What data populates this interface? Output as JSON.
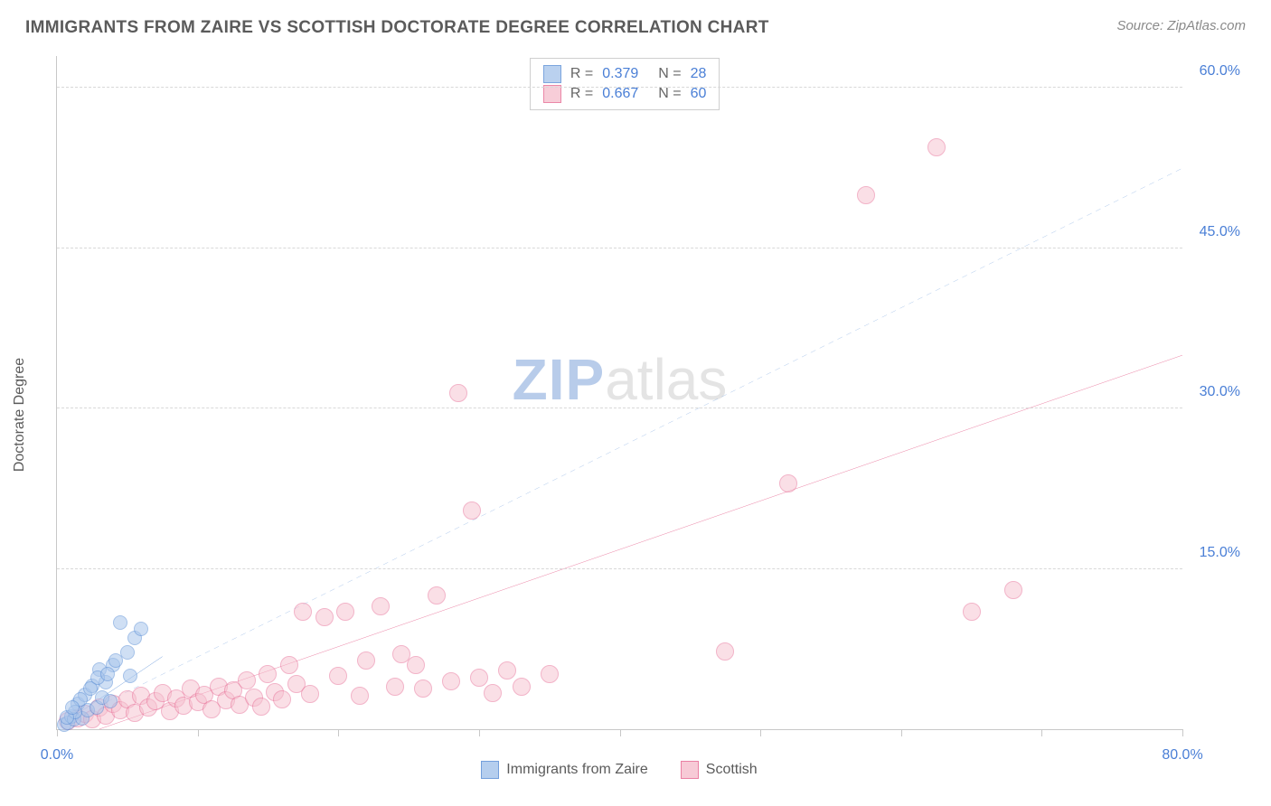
{
  "header": {
    "title": "IMMIGRANTS FROM ZAIRE VS SCOTTISH DOCTORATE DEGREE CORRELATION CHART",
    "source": "Source: ZipAtlas.com"
  },
  "ylabel": "Doctorate Degree",
  "watermark": {
    "a": "ZIP",
    "b": "atlas"
  },
  "xlim": [
    0,
    80
  ],
  "ylim": [
    0,
    63
  ],
  "grid_y": [
    15,
    30,
    45,
    60
  ],
  "ytick_labels": {
    "15": "15.0%",
    "30": "30.0%",
    "45": "45.0%",
    "60": "60.0%"
  },
  "xticks": [
    0,
    10,
    20,
    30,
    40,
    50,
    60,
    70,
    80
  ],
  "xtick_labels": {
    "0": "0.0%",
    "80": "80.0%"
  },
  "series": {
    "zaire": {
      "label": "Immigrants from Zaire",
      "color_fill": "#a9c6ec",
      "color_stroke": "#5b8fd6",
      "marker_r": 8,
      "fill_opacity": 0.55,
      "R": "0.379",
      "N": "28",
      "trend": {
        "x1": 0.4,
        "y1": 0.5,
        "x2": 7.5,
        "y2": 6.8,
        "dashed": true,
        "width": 1.5,
        "extend_to_x": 80,
        "extend_to_y": 52.5
      },
      "points": [
        [
          0.5,
          0.4
        ],
        [
          0.8,
          0.6
        ],
        [
          1.0,
          1.2
        ],
        [
          1.2,
          0.9
        ],
        [
          1.5,
          2.4
        ],
        [
          1.8,
          1.0
        ],
        [
          2.0,
          3.2
        ],
        [
          2.2,
          1.8
        ],
        [
          2.5,
          4.1
        ],
        [
          2.8,
          2.0
        ],
        [
          3.0,
          5.6
        ],
        [
          3.2,
          3.0
        ],
        [
          3.5,
          4.4
        ],
        [
          3.8,
          2.6
        ],
        [
          4.0,
          6.0
        ],
        [
          4.5,
          10.0
        ],
        [
          5.0,
          7.2
        ],
        [
          5.2,
          5.0
        ],
        [
          5.5,
          8.5
        ],
        [
          6.0,
          9.4
        ],
        [
          1.3,
          1.6
        ],
        [
          1.7,
          2.8
        ],
        [
          2.4,
          3.8
        ],
        [
          0.7,
          1.1
        ],
        [
          1.1,
          2.0
        ],
        [
          2.9,
          4.8
        ],
        [
          3.6,
          5.2
        ],
        [
          4.2,
          6.4
        ]
      ]
    },
    "scottish": {
      "label": "Scottish",
      "color_fill": "#f6c1cf",
      "color_stroke": "#e76a93",
      "marker_r": 10,
      "fill_opacity": 0.5,
      "R": "0.667",
      "N": "60",
      "trend": {
        "x1": 3.0,
        "y1": 0.0,
        "x2": 80,
        "y2": 35.0,
        "dashed": false,
        "width": 2.5
      },
      "points": [
        [
          0.8,
          0.8
        ],
        [
          1.5,
          1.0
        ],
        [
          2.0,
          1.4
        ],
        [
          2.5,
          0.9
        ],
        [
          3.0,
          2.0
        ],
        [
          3.5,
          1.3
        ],
        [
          4.0,
          2.4
        ],
        [
          4.5,
          1.8
        ],
        [
          5.0,
          2.8
        ],
        [
          5.5,
          1.5
        ],
        [
          6.0,
          3.1
        ],
        [
          6.5,
          2.0
        ],
        [
          7.0,
          2.6
        ],
        [
          7.5,
          3.4
        ],
        [
          8.0,
          1.7
        ],
        [
          8.5,
          2.9
        ],
        [
          9.0,
          2.2
        ],
        [
          9.5,
          3.8
        ],
        [
          10.0,
          2.5
        ],
        [
          10.5,
          3.2
        ],
        [
          11.0,
          1.9
        ],
        [
          11.5,
          4.0
        ],
        [
          12.0,
          2.7
        ],
        [
          12.5,
          3.6
        ],
        [
          13.0,
          2.3
        ],
        [
          13.5,
          4.6
        ],
        [
          14.0,
          3.0
        ],
        [
          14.5,
          2.1
        ],
        [
          15.0,
          5.2
        ],
        [
          15.5,
          3.5
        ],
        [
          16.0,
          2.8
        ],
        [
          16.5,
          6.0
        ],
        [
          17.0,
          4.2
        ],
        [
          17.5,
          11.0
        ],
        [
          18.0,
          3.3
        ],
        [
          19.0,
          10.5
        ],
        [
          20.0,
          5.0
        ],
        [
          20.5,
          11.0
        ],
        [
          21.5,
          3.1
        ],
        [
          22.0,
          6.4
        ],
        [
          23.0,
          11.5
        ],
        [
          24.0,
          4.0
        ],
        [
          24.5,
          7.0
        ],
        [
          25.5,
          6.0
        ],
        [
          26.0,
          3.8
        ],
        [
          27.0,
          12.5
        ],
        [
          28.0,
          4.5
        ],
        [
          28.5,
          31.5
        ],
        [
          29.5,
          20.5
        ],
        [
          30.0,
          4.8
        ],
        [
          31.0,
          3.4
        ],
        [
          32.0,
          5.5
        ],
        [
          33.0,
          4.0
        ],
        [
          35.0,
          5.2
        ],
        [
          47.5,
          7.3
        ],
        [
          52.0,
          23.0
        ],
        [
          57.5,
          50.0
        ],
        [
          62.5,
          54.5
        ],
        [
          65.0,
          11.0
        ],
        [
          68.0,
          13.0
        ]
      ]
    }
  },
  "stat_legend": {
    "r_label": "R =",
    "n_label": "N ="
  },
  "colors": {
    "axis": "#c8c8c8",
    "grid": "#d8d8d8",
    "tick_text": "#4a7fd6",
    "title_text": "#5b5b5b"
  }
}
